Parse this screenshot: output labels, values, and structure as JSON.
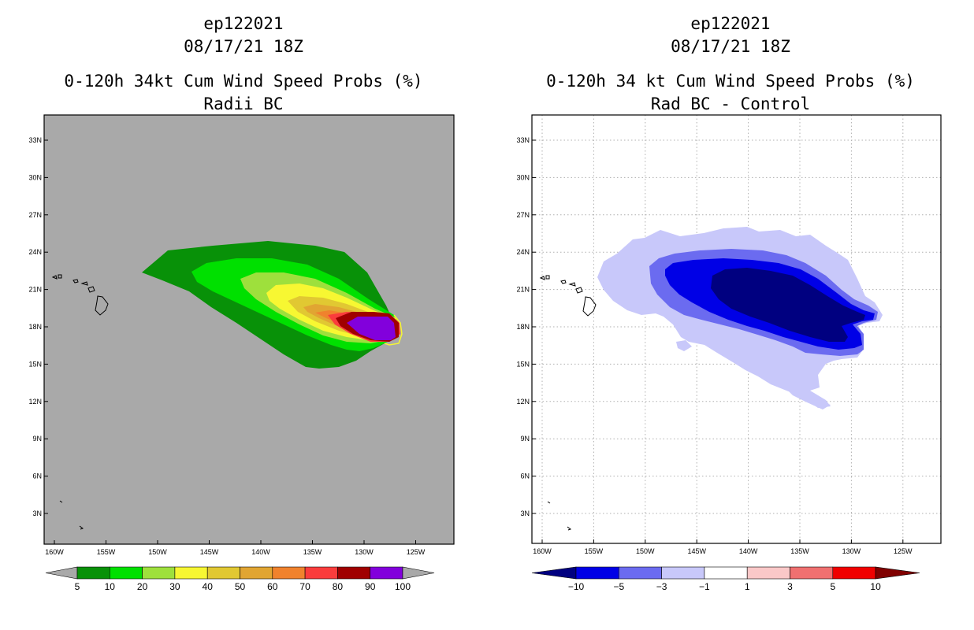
{
  "chart_data": [
    {
      "type": "heatmap",
      "storm": "ep122021",
      "datetime": "08/17/21 18Z",
      "title": "0-120h 34kt Cum Wind Speed Probs (%)",
      "subtitle": "Radii BC",
      "background_color": "#a9a9a9",
      "x_ticks": [
        "160W",
        "155W",
        "150W",
        "145W",
        "140W",
        "135W",
        "130W",
        "125W"
      ],
      "y_ticks": [
        "3N",
        "6N",
        "9N",
        "12N",
        "15N",
        "18N",
        "21N",
        "24N",
        "27N",
        "30N",
        "33N"
      ],
      "xlim_deg_west": [
        161,
        121
      ],
      "ylim_deg_north": [
        0.5,
        35
      ],
      "colorbar": {
        "levels": [
          "5",
          "10",
          "20",
          "30",
          "40",
          "50",
          "60",
          "70",
          "80",
          "90",
          "100"
        ],
        "colors": [
          "#089108",
          "#00e000",
          "#9ee03c",
          "#f7f732",
          "#e1c832",
          "#e1a532",
          "#f0822d",
          "#fa3c3c",
          "#a00000",
          "#8200dc"
        ],
        "under_color": "#a9a9a9",
        "over_color": "#a9a9a9"
      }
    },
    {
      "type": "heatmap",
      "storm": "ep122021",
      "datetime": "08/17/21 18Z",
      "title": "0-120h 34 kt Cum Wind Speed Probs (%)",
      "subtitle": "Rad BC - Control",
      "background_color": "#ffffff",
      "grid": true,
      "x_ticks": [
        "160W",
        "155W",
        "150W",
        "145W",
        "140W",
        "135W",
        "130W",
        "125W"
      ],
      "y_ticks": [
        "3N",
        "6N",
        "9N",
        "12N",
        "15N",
        "18N",
        "21N",
        "24N",
        "27N",
        "30N",
        "33N"
      ],
      "xlim_deg_west": [
        161,
        121
      ],
      "ylim_deg_north": [
        0.5,
        35
      ],
      "colorbar": {
        "levels": [
          "−10",
          "−5",
          "−3",
          "−1",
          "1",
          "3",
          "5",
          "10"
        ],
        "colors": [
          "#0000e6",
          "#6b6bf0",
          "#c8c8fa",
          "#ffffff",
          "#fac8c8",
          "#f07070",
          "#f00000"
        ],
        "under_color": "#000080",
        "over_color": "#800000"
      }
    }
  ]
}
